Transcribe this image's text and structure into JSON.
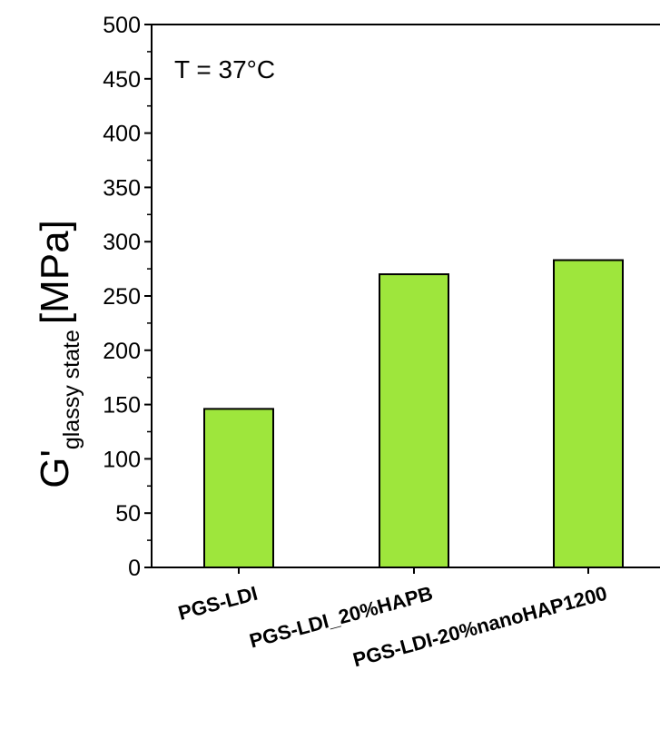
{
  "chart_data": {
    "type": "bar",
    "categories": [
      "PGS-LDI",
      "PGS-LDI_20%HAPB",
      "PGS-LDI-20%nanoHAP1200"
    ],
    "values": [
      146,
      270,
      283
    ],
    "ylabel": {
      "main": "G'",
      "subscript": "glassy state",
      "unit": "[MPa]"
    },
    "xlabel": "",
    "ylim": [
      0,
      500
    ],
    "yticks": [
      0,
      50,
      100,
      150,
      200,
      250,
      300,
      350,
      400,
      450,
      500
    ],
    "annotation": "T = 37°C",
    "grid": false,
    "colors": {
      "bar_fill": "#9ee63c",
      "bar_stroke": "#000000"
    }
  }
}
